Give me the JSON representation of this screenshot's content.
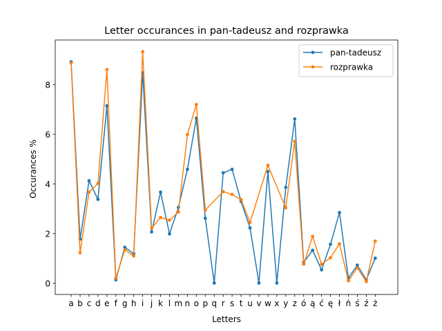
{
  "chart_data": {
    "type": "line",
    "title": "Letter occurances in pan-tadeusz and rozprawka",
    "xlabel": "Letters",
    "ylabel": "Occurances %",
    "categories": [
      "a",
      "b",
      "c",
      "d",
      "e",
      "f",
      "g",
      "h",
      "i",
      "j",
      "k",
      "l",
      "m",
      "n",
      "o",
      "p",
      "q",
      "r",
      "s",
      "t",
      "u",
      "v",
      "w",
      "x",
      "y",
      "z",
      "ó",
      "ą",
      "ć",
      "ę",
      "ł",
      "ń",
      "ś",
      "ź",
      "ż"
    ],
    "ylim": [
      -0.45,
      9.8
    ],
    "yticks": [
      0,
      2,
      4,
      6,
      8
    ],
    "legend_position": "top-right",
    "grid": false,
    "series": [
      {
        "name": "pan-tadeusz",
        "color": "#1f77b4",
        "values": [
          8.92,
          1.78,
          4.13,
          3.38,
          7.15,
          0.14,
          1.45,
          1.19,
          8.48,
          2.07,
          3.67,
          1.99,
          3.06,
          4.59,
          6.65,
          2.62,
          0.01,
          4.45,
          4.59,
          3.3,
          2.23,
          0.01,
          4.5,
          0.01,
          3.86,
          6.62,
          0.84,
          1.33,
          0.54,
          1.57,
          2.85,
          0.21,
          0.73,
          0.14,
          1.01
        ]
      },
      {
        "name": "rozprawka",
        "color": "#ff7f0e",
        "values": [
          8.87,
          1.23,
          3.67,
          4.02,
          8.61,
          0.21,
          1.35,
          1.1,
          9.33,
          2.22,
          2.65,
          2.54,
          2.87,
          5.99,
          7.2,
          2.95,
          null,
          3.69,
          3.58,
          3.37,
          2.45,
          null,
          4.75,
          null,
          3.04,
          5.72,
          0.77,
          1.89,
          0.77,
          1.03,
          1.59,
          0.1,
          0.62,
          0.07,
          1.7
        ]
      }
    ]
  }
}
